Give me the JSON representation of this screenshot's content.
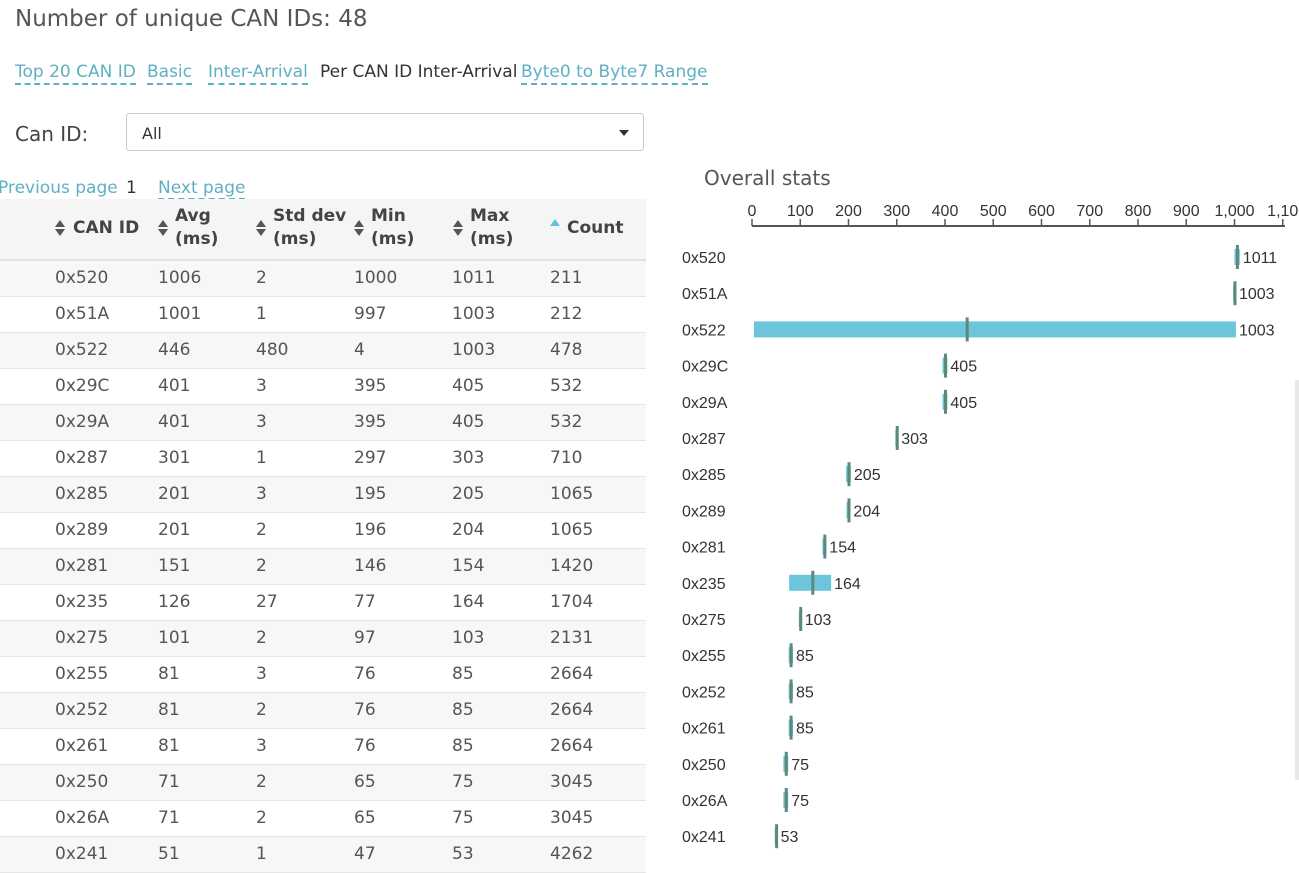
{
  "page": {
    "title": "Number of unique CAN IDs: 48"
  },
  "tabs": [
    {
      "label": "Top 20 CAN ID",
      "active": false
    },
    {
      "label": "Basic",
      "active": false
    },
    {
      "label": "Inter-Arrival",
      "active": false
    },
    {
      "label": "Per CAN ID Inter-Arrival",
      "active": true
    },
    {
      "label": "Byte0 to Byte7 Range",
      "active": false
    }
  ],
  "filter": {
    "label": "Can ID:",
    "selected": "All"
  },
  "pager": {
    "prev": "Previous page",
    "current": "1",
    "next": "Next page"
  },
  "table": {
    "headers": [
      {
        "l1": "CAN ID",
        "l2": "",
        "sort": "both"
      },
      {
        "l1": "Avg",
        "l2": "(ms)",
        "sort": "both"
      },
      {
        "l1": "Std dev",
        "l2": "(ms)",
        "sort": "both"
      },
      {
        "l1": "Min",
        "l2": "(ms)",
        "sort": "both"
      },
      {
        "l1": "Max",
        "l2": "(ms)",
        "sort": "both"
      },
      {
        "l1": "Count",
        "l2": "",
        "sort": "asc"
      }
    ],
    "rows": [
      [
        "0x520",
        "1006",
        "2",
        "1000",
        "1011",
        "211"
      ],
      [
        "0x51A",
        "1001",
        "1",
        "997",
        "1003",
        "212"
      ],
      [
        "0x522",
        "446",
        "480",
        "4",
        "1003",
        "478"
      ],
      [
        "0x29C",
        "401",
        "3",
        "395",
        "405",
        "532"
      ],
      [
        "0x29A",
        "401",
        "3",
        "395",
        "405",
        "532"
      ],
      [
        "0x287",
        "301",
        "1",
        "297",
        "303",
        "710"
      ],
      [
        "0x285",
        "201",
        "3",
        "195",
        "205",
        "1065"
      ],
      [
        "0x289",
        "201",
        "2",
        "196",
        "204",
        "1065"
      ],
      [
        "0x281",
        "151",
        "2",
        "146",
        "154",
        "1420"
      ],
      [
        "0x235",
        "126",
        "27",
        "77",
        "164",
        "1704"
      ],
      [
        "0x275",
        "101",
        "2",
        "97",
        "103",
        "2131"
      ],
      [
        "0x255",
        "81",
        "3",
        "76",
        "85",
        "2664"
      ],
      [
        "0x252",
        "81",
        "2",
        "76",
        "85",
        "2664"
      ],
      [
        "0x261",
        "81",
        "3",
        "76",
        "85",
        "2664"
      ],
      [
        "0x250",
        "71",
        "2",
        "65",
        "75",
        "3045"
      ],
      [
        "0x26A",
        "71",
        "2",
        "65",
        "75",
        "3045"
      ],
      [
        "0x241",
        "51",
        "1",
        "47",
        "53",
        "4262"
      ]
    ]
  },
  "chart_data": {
    "type": "bar",
    "title": "Overall stats",
    "x_ticks": [
      "0",
      "100",
      "200",
      "300",
      "400",
      "500",
      "600",
      "700",
      "800",
      "900",
      "1,000",
      "1,10"
    ],
    "xlim": [
      0,
      1100
    ],
    "axis_position": "top",
    "bar_color": "#6cc5da",
    "marker_color": "#5b8a7d",
    "categories": [
      "0x520",
      "0x51A",
      "0x522",
      "0x29C",
      "0x29A",
      "0x287",
      "0x285",
      "0x289",
      "0x281",
      "0x235",
      "0x275",
      "0x255",
      "0x252",
      "0x261",
      "0x250",
      "0x26A",
      "0x241"
    ],
    "series": [
      {
        "name": "Min",
        "values": [
          1000,
          997,
          4,
          395,
          395,
          297,
          195,
          196,
          146,
          77,
          97,
          76,
          76,
          76,
          65,
          65,
          47
        ]
      },
      {
        "name": "Avg",
        "values": [
          1006,
          1001,
          446,
          401,
          401,
          301,
          201,
          201,
          151,
          126,
          101,
          81,
          81,
          81,
          71,
          71,
          51
        ]
      },
      {
        "name": "Max",
        "values": [
          1011,
          1003,
          1003,
          405,
          405,
          303,
          205,
          204,
          154,
          164,
          103,
          85,
          85,
          85,
          75,
          75,
          53
        ]
      }
    ],
    "value_labels": [
      "1011",
      "1003",
      "1003",
      "405",
      "405",
      "303",
      "205",
      "204",
      "154",
      "164",
      "103",
      "85",
      "85",
      "85",
      "75",
      "75",
      "53"
    ]
  }
}
